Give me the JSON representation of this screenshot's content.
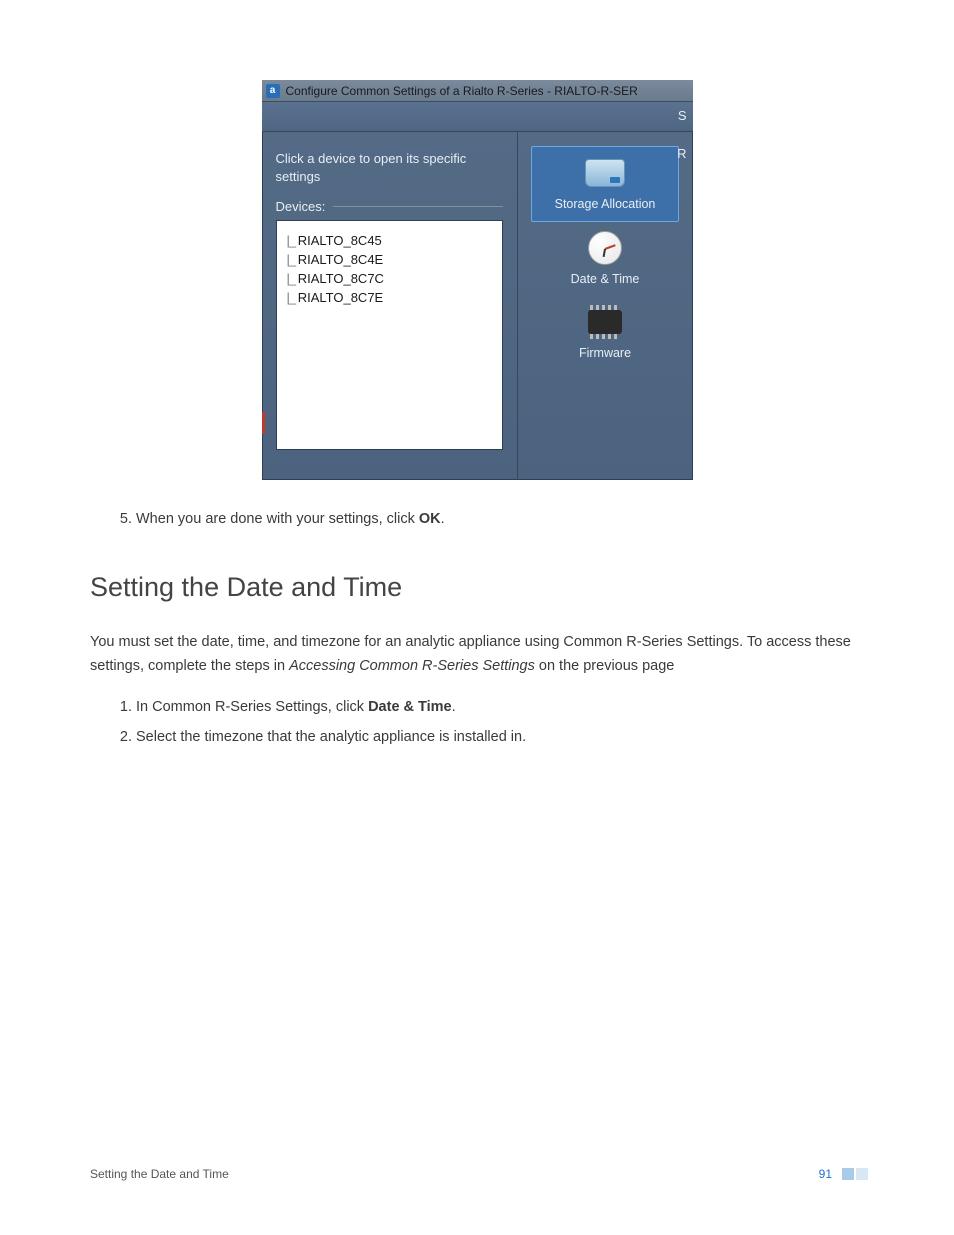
{
  "screenshot": {
    "title": "Configure Common Settings of a Rialto R-Series - RIALTO-R-SER",
    "toolbar_right_letter": "S",
    "right_panel_letter": "R",
    "instruction": "Click a device to open its specific settings",
    "devices_label": "Devices:",
    "devices": [
      "RIALTO_8C45",
      "RIALTO_8C4E",
      "RIALTO_8C7C",
      "RIALTO_8C7E"
    ],
    "tiles": {
      "storage": "Storage Allocation",
      "datetime": "Date & Time",
      "firmware": "Firmware"
    },
    "colors": {
      "panel_bg_top": "#556c87",
      "panel_bg_bottom": "#4c637f",
      "selected_tile_bg": "#3d6fa8",
      "selected_tile_border": "#6ea6e6",
      "titlebar_top": "#7b8a9c",
      "list_bg": "#ffffff"
    }
  },
  "step5": {
    "prefix": "When you are done with your settings, click ",
    "bold": "OK",
    "suffix": "."
  },
  "heading": "Setting the Date and Time",
  "intro": {
    "part1": "You must set the date, time, and timezone for an analytic appliance using Common R-Series Settings. To access these settings, complete the steps in ",
    "italic": "Accessing Common R-Series Settings",
    "part2": " on the previous page"
  },
  "steps": {
    "s1_prefix": "In Common R-Series Settings, click ",
    "s1_bold": "Date & Time",
    "s1_suffix": ".",
    "s2": "Select the timezone that the analytic appliance is installed in."
  },
  "footer": {
    "title": "Setting the Date and Time",
    "page": "91"
  }
}
